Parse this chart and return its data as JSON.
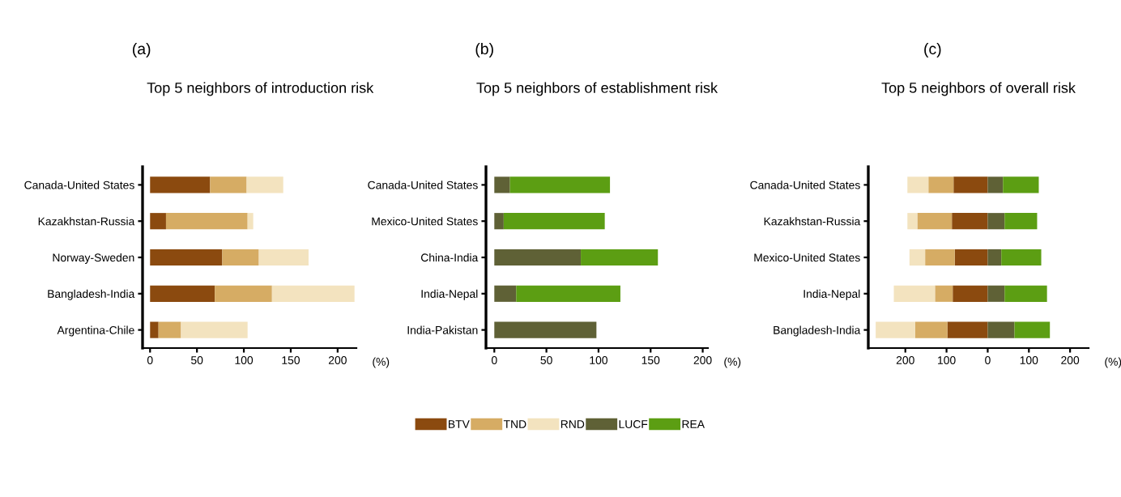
{
  "chart_data": [
    {
      "type": "bar",
      "orientation": "horizontal",
      "stacked": true,
      "title": "Top 5 neighbors of introduction risk",
      "annotations": [
        "(a)"
      ],
      "xlabel": "(%)",
      "categories": [
        "Canada-United States",
        "Kazakhstan-Russia",
        "Norway-Sweden",
        "Bangladesh-India",
        "Argentina-Chile"
      ],
      "series": [
        {
          "name": "BTV",
          "color": "#8b4a0f",
          "values": [
            64,
            17,
            77,
            69,
            9
          ]
        },
        {
          "name": "TND",
          "color": "#d6ac64",
          "values": [
            39,
            87,
            39,
            61,
            24
          ]
        },
        {
          "name": "RND",
          "color": "#f3e3bf",
          "values": [
            39,
            6,
            53,
            88,
            71
          ]
        }
      ],
      "xlim": [
        -8,
        220
      ],
      "xticks": [
        0,
        50,
        100,
        150,
        200
      ],
      "grid": false,
      "legend": "bottom"
    },
    {
      "type": "bar",
      "orientation": "horizontal",
      "stacked": true,
      "title": "Top 5 neighbors of establishment risk",
      "annotations": [
        "(b)"
      ],
      "xlabel": "(%)",
      "categories": [
        "Canada-United States",
        "Mexico-United States",
        "China-India",
        "India-Nepal",
        "India-Pakistan"
      ],
      "series": [
        {
          "name": "LUCF",
          "color": "#5f6136",
          "values": [
            15,
            9,
            83,
            21,
            98
          ]
        },
        {
          "name": "REA",
          "color": "#5c9e13",
          "values": [
            96,
            97,
            74,
            100,
            0
          ]
        }
      ],
      "xlim": [
        -8,
        205
      ],
      "xticks": [
        0,
        50,
        100,
        150,
        200
      ],
      "grid": false,
      "legend": "bottom"
    },
    {
      "type": "bar",
      "orientation": "horizontal",
      "stacked": true,
      "title": "Top 5 neighbors of overall risk",
      "annotations": [
        "(c)"
      ],
      "xlabel": "(%)",
      "categories": [
        "Canada-United States",
        "Kazakhstan-Russia",
        "Mexico-United States",
        "India-Nepal",
        "Bangladesh-India"
      ],
      "series": [
        {
          "name": "BTV",
          "color": "#8b4a0f",
          "values": [
            -83,
            -87,
            -80,
            -85,
            -98
          ]
        },
        {
          "name": "TND",
          "color": "#d6ac64",
          "values": [
            -61,
            -84,
            -72,
            -43,
            -78
          ]
        },
        {
          "name": "RND",
          "color": "#f3e3bf",
          "values": [
            -51,
            -24,
            -38,
            -100,
            -96
          ]
        },
        {
          "name": "LUCF",
          "color": "#5f6136",
          "values": [
            37,
            41,
            33,
            41,
            65
          ]
        },
        {
          "name": "REA",
          "color": "#5c9e13",
          "values": [
            87,
            79,
            97,
            103,
            86
          ]
        }
      ],
      "xlim": [
        -290,
        245
      ],
      "xticks": [
        {
          "value": -200,
          "label": "200"
        },
        {
          "value": -100,
          "label": "100"
        },
        0,
        100,
        200
      ],
      "grid": false,
      "legend": "bottom"
    }
  ]
}
